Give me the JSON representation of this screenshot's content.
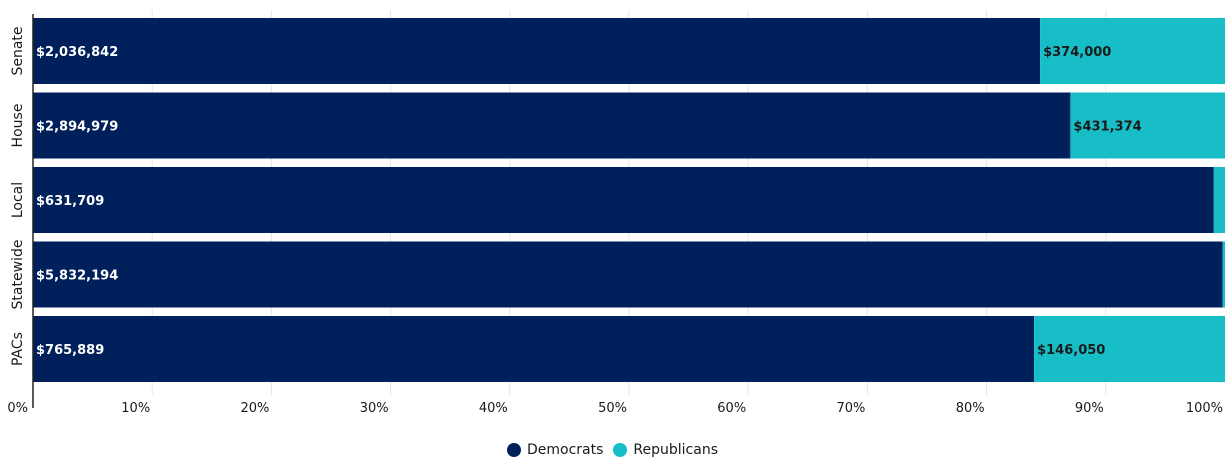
{
  "chart_data": {
    "type": "bar",
    "orientation": "horizontal",
    "stacked": "percent",
    "categories": [
      "Senate",
      "House",
      "Local",
      "Statewide",
      "PACs"
    ],
    "series": [
      {
        "name": "Democrats",
        "values": [
          2036842,
          2894979,
          631709,
          5832194,
          765889
        ],
        "labels": [
          "$2,036,842",
          "$2,894,979",
          "$631,709",
          "$5,832,194",
          "$765,889"
        ],
        "color": "#00205b",
        "label_color": "#ffffff"
      },
      {
        "name": "Republicans",
        "values": [
          374000,
          431374,
          6000,
          12000,
          146050
        ],
        "labels": [
          "$374,000",
          "$431,374",
          "",
          "",
          "$146,050"
        ],
        "color": "#17bec7",
        "label_color": "#1a1a1a"
      }
    ],
    "xticks": [
      "0%",
      "10%",
      "20%",
      "30%",
      "40%",
      "50%",
      "60%",
      "70%",
      "80%",
      "90%",
      "100%"
    ],
    "xlim": [
      0,
      100
    ],
    "grid": true,
    "legend": "bottom-center",
    "title": "",
    "xlabel": "",
    "ylabel": ""
  }
}
